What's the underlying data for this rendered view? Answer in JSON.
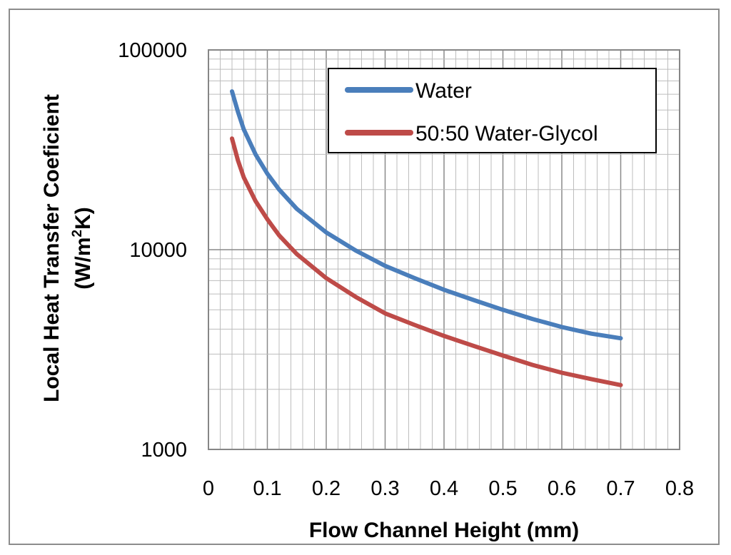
{
  "chart_data": {
    "type": "line",
    "title": "",
    "xlabel": "Flow Channel Height (mm)",
    "ylabel_line1": "Local Heat Transfer Coeficient",
    "ylabel_line2_prefix": "(W/m",
    "ylabel_line2_sup": "2",
    "ylabel_line2_suffix": "K)",
    "yscale": "log",
    "xlim": [
      0,
      0.8
    ],
    "ylim": [
      1000,
      100000
    ],
    "grid": true,
    "legend_position": "top-right",
    "x_ticks": [
      "0",
      "0.1",
      "0.2",
      "0.3",
      "0.4",
      "0.5",
      "0.6",
      "0.7",
      "0.8"
    ],
    "y_ticks": [
      "1000",
      "10000",
      "100000"
    ],
    "series": [
      {
        "name": "Water",
        "color": "#4a7ebb",
        "x": [
          0.04,
          0.05,
          0.06,
          0.08,
          0.1,
          0.12,
          0.15,
          0.2,
          0.25,
          0.3,
          0.35,
          0.4,
          0.45,
          0.5,
          0.55,
          0.6,
          0.65,
          0.7
        ],
        "y": [
          62000,
          49000,
          40000,
          30000,
          24000,
          20000,
          16000,
          12200,
          9900,
          8300,
          7200,
          6300,
          5600,
          5000,
          4500,
          4100,
          3800,
          3600
        ]
      },
      {
        "name": "50:50 Water-Glycol",
        "color": "#be4b48",
        "x": [
          0.04,
          0.05,
          0.06,
          0.08,
          0.1,
          0.12,
          0.15,
          0.2,
          0.25,
          0.3,
          0.35,
          0.4,
          0.45,
          0.5,
          0.55,
          0.6,
          0.65,
          0.7
        ],
        "y": [
          36000,
          28000,
          23000,
          17500,
          14200,
          11800,
          9500,
          7200,
          5800,
          4800,
          4200,
          3700,
          3300,
          2950,
          2650,
          2420,
          2250,
          2100
        ]
      }
    ]
  }
}
